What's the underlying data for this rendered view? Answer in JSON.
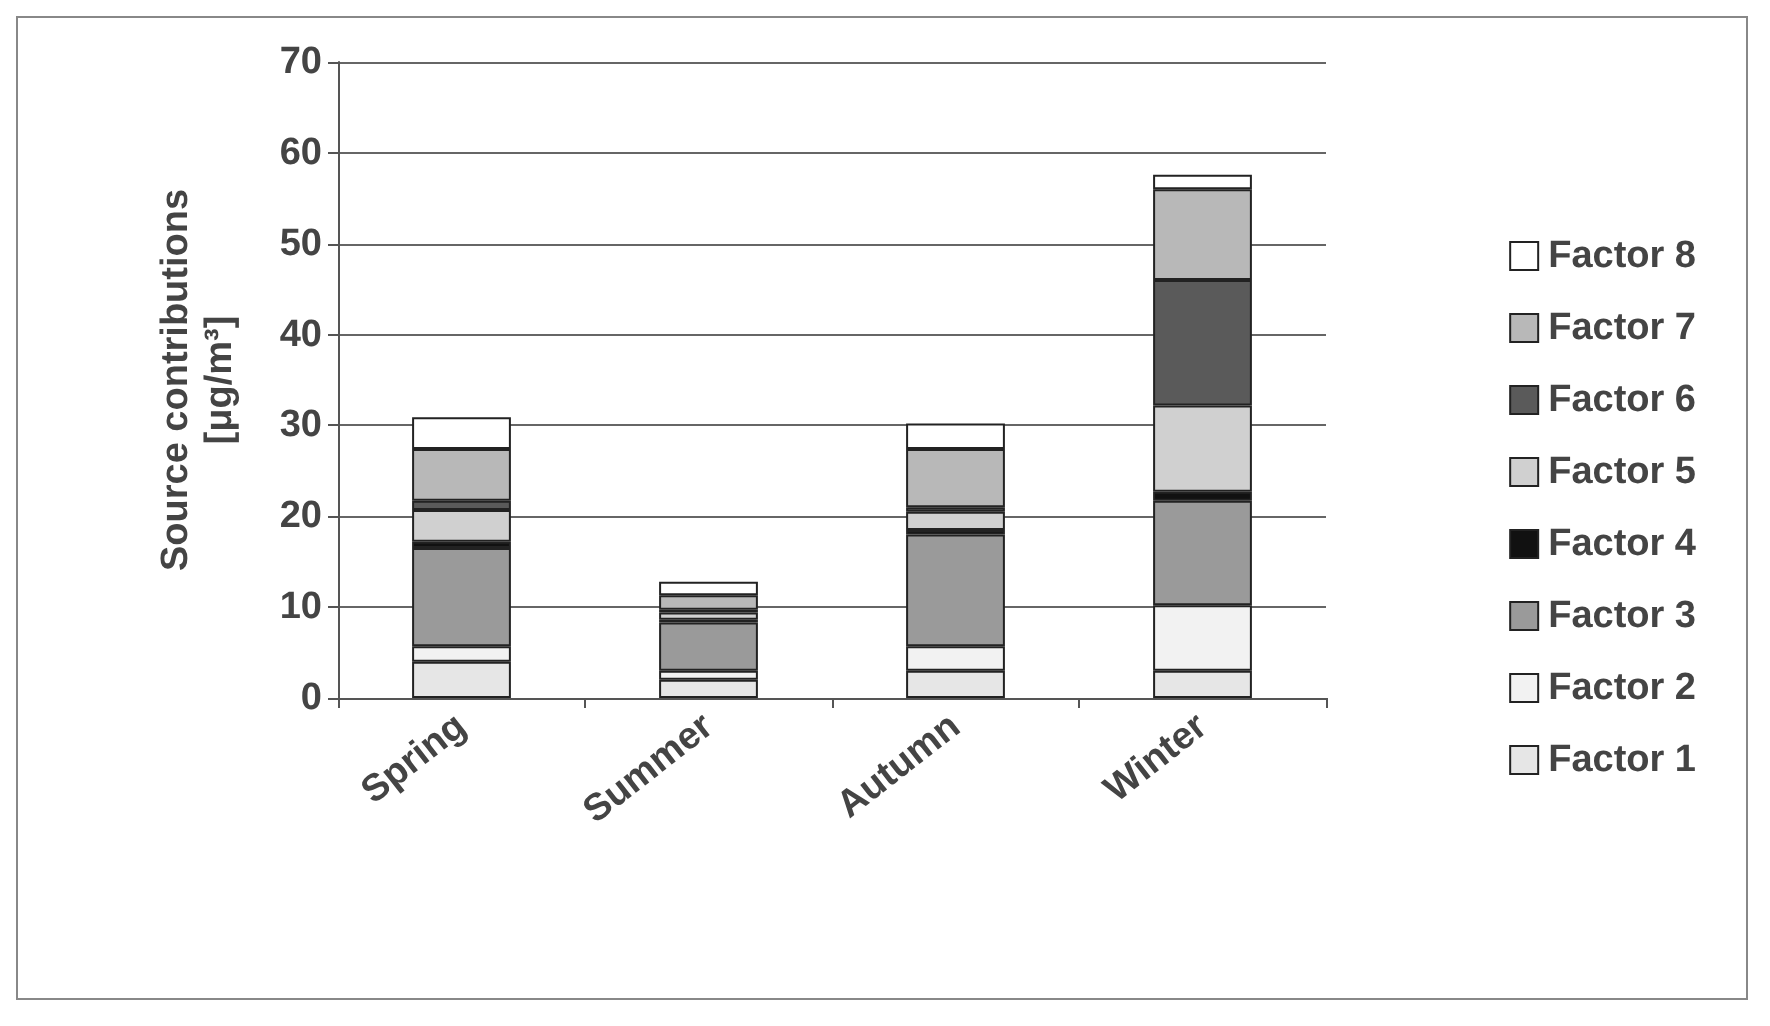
{
  "chart_data": {
    "type": "bar",
    "stacked": true,
    "ylabel": "Source contributions\n[μg/m³]",
    "categories": [
      "Spring",
      "Summer",
      "Autumn",
      "Winter"
    ],
    "series": [
      {
        "name": "Factor 1",
        "color": "#e6e6e6",
        "values": [
          4,
          2,
          3,
          3
        ]
      },
      {
        "name": "Factor 2",
        "color": "#f2f2f2",
        "values": [
          1.7,
          1,
          2.7,
          7.2
        ]
      },
      {
        "name": "Factor 3",
        "color": "#9a9a9a",
        "values": [
          10.8,
          5.3,
          12.3,
          11.5
        ]
      },
      {
        "name": "Factor 4",
        "color": "#111111",
        "values": [
          0.7,
          0.3,
          0.5,
          1
        ]
      },
      {
        "name": "Factor 5",
        "color": "#d0d0d0",
        "values": [
          3.5,
          0.8,
          2,
          9.5
        ]
      },
      {
        "name": "Factor 6",
        "color": "#5a5a5a",
        "values": [
          1,
          0.3,
          0.5,
          13.8
        ]
      },
      {
        "name": "Factor 7",
        "color": "#b8b8b8",
        "values": [
          5.7,
          1.6,
          6.4,
          10
        ]
      },
      {
        "name": "Factor 8",
        "color": "#ffffff",
        "values": [
          3.5,
          1.5,
          2.8,
          1.6
        ]
      }
    ],
    "ylim": [
      0,
      70
    ],
    "yticks": [
      0,
      10,
      20,
      30,
      40,
      50,
      60,
      70
    ],
    "grid": "y",
    "legend": "right"
  }
}
